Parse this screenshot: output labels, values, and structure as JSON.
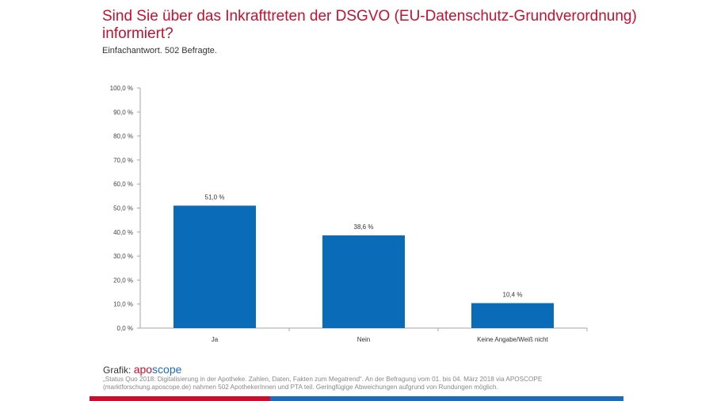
{
  "header": {
    "title": "Sind Sie über das Inkrafttreten der DSGVO (EU-Datenschutz-Grundverordnung) informiert?",
    "subtitle": "Einfachantwort. 502 Befragte."
  },
  "footer": {
    "grafik_label": "Grafik:",
    "logo_part1": "apo",
    "logo_part2": "scope",
    "source": "„Status Quo 2018: Digitalisierung in der Apotheke. Zahlen, Daten, Fakten zum Megatrend“. An der Befragung vom 01. bis 04. März 2018 via APOSCOPE (marktforschung.aposcope.de) nahmen 502 ApothekerInnen und PTA teil. Geringfügige Abweichungen aufgrund von Rundungen möglich."
  },
  "colors": {
    "accent_red": "#c8102e",
    "bar_blue": "#0a6bb8"
  },
  "chart_data": {
    "type": "bar",
    "title": "Sind Sie über das Inkrafttreten der DSGVO (EU-Datenschutz-Grundverordnung) informiert?",
    "subtitle": "Einfachantwort. 502 Befragte.",
    "categories": [
      "Ja",
      "Nein",
      "Keine Angabe/Weiß nicht"
    ],
    "values": [
      51.0,
      38.6,
      10.4
    ],
    "value_labels": [
      "51,0 %",
      "38,6 %",
      "10,4 %"
    ],
    "xlabel": "",
    "ylabel": "",
    "ylim": [
      0,
      100
    ],
    "yticks": [
      0,
      10,
      20,
      30,
      40,
      50,
      60,
      70,
      80,
      90,
      100
    ],
    "ytick_labels": [
      "0,0 %",
      "10,0 %",
      "20,0 %",
      "30,0 %",
      "40,0 %",
      "50,0 %",
      "60,0 %",
      "70,0 %",
      "80,0 %",
      "90,0 %",
      "100,0 %"
    ],
    "grid": false,
    "legend": "none"
  }
}
